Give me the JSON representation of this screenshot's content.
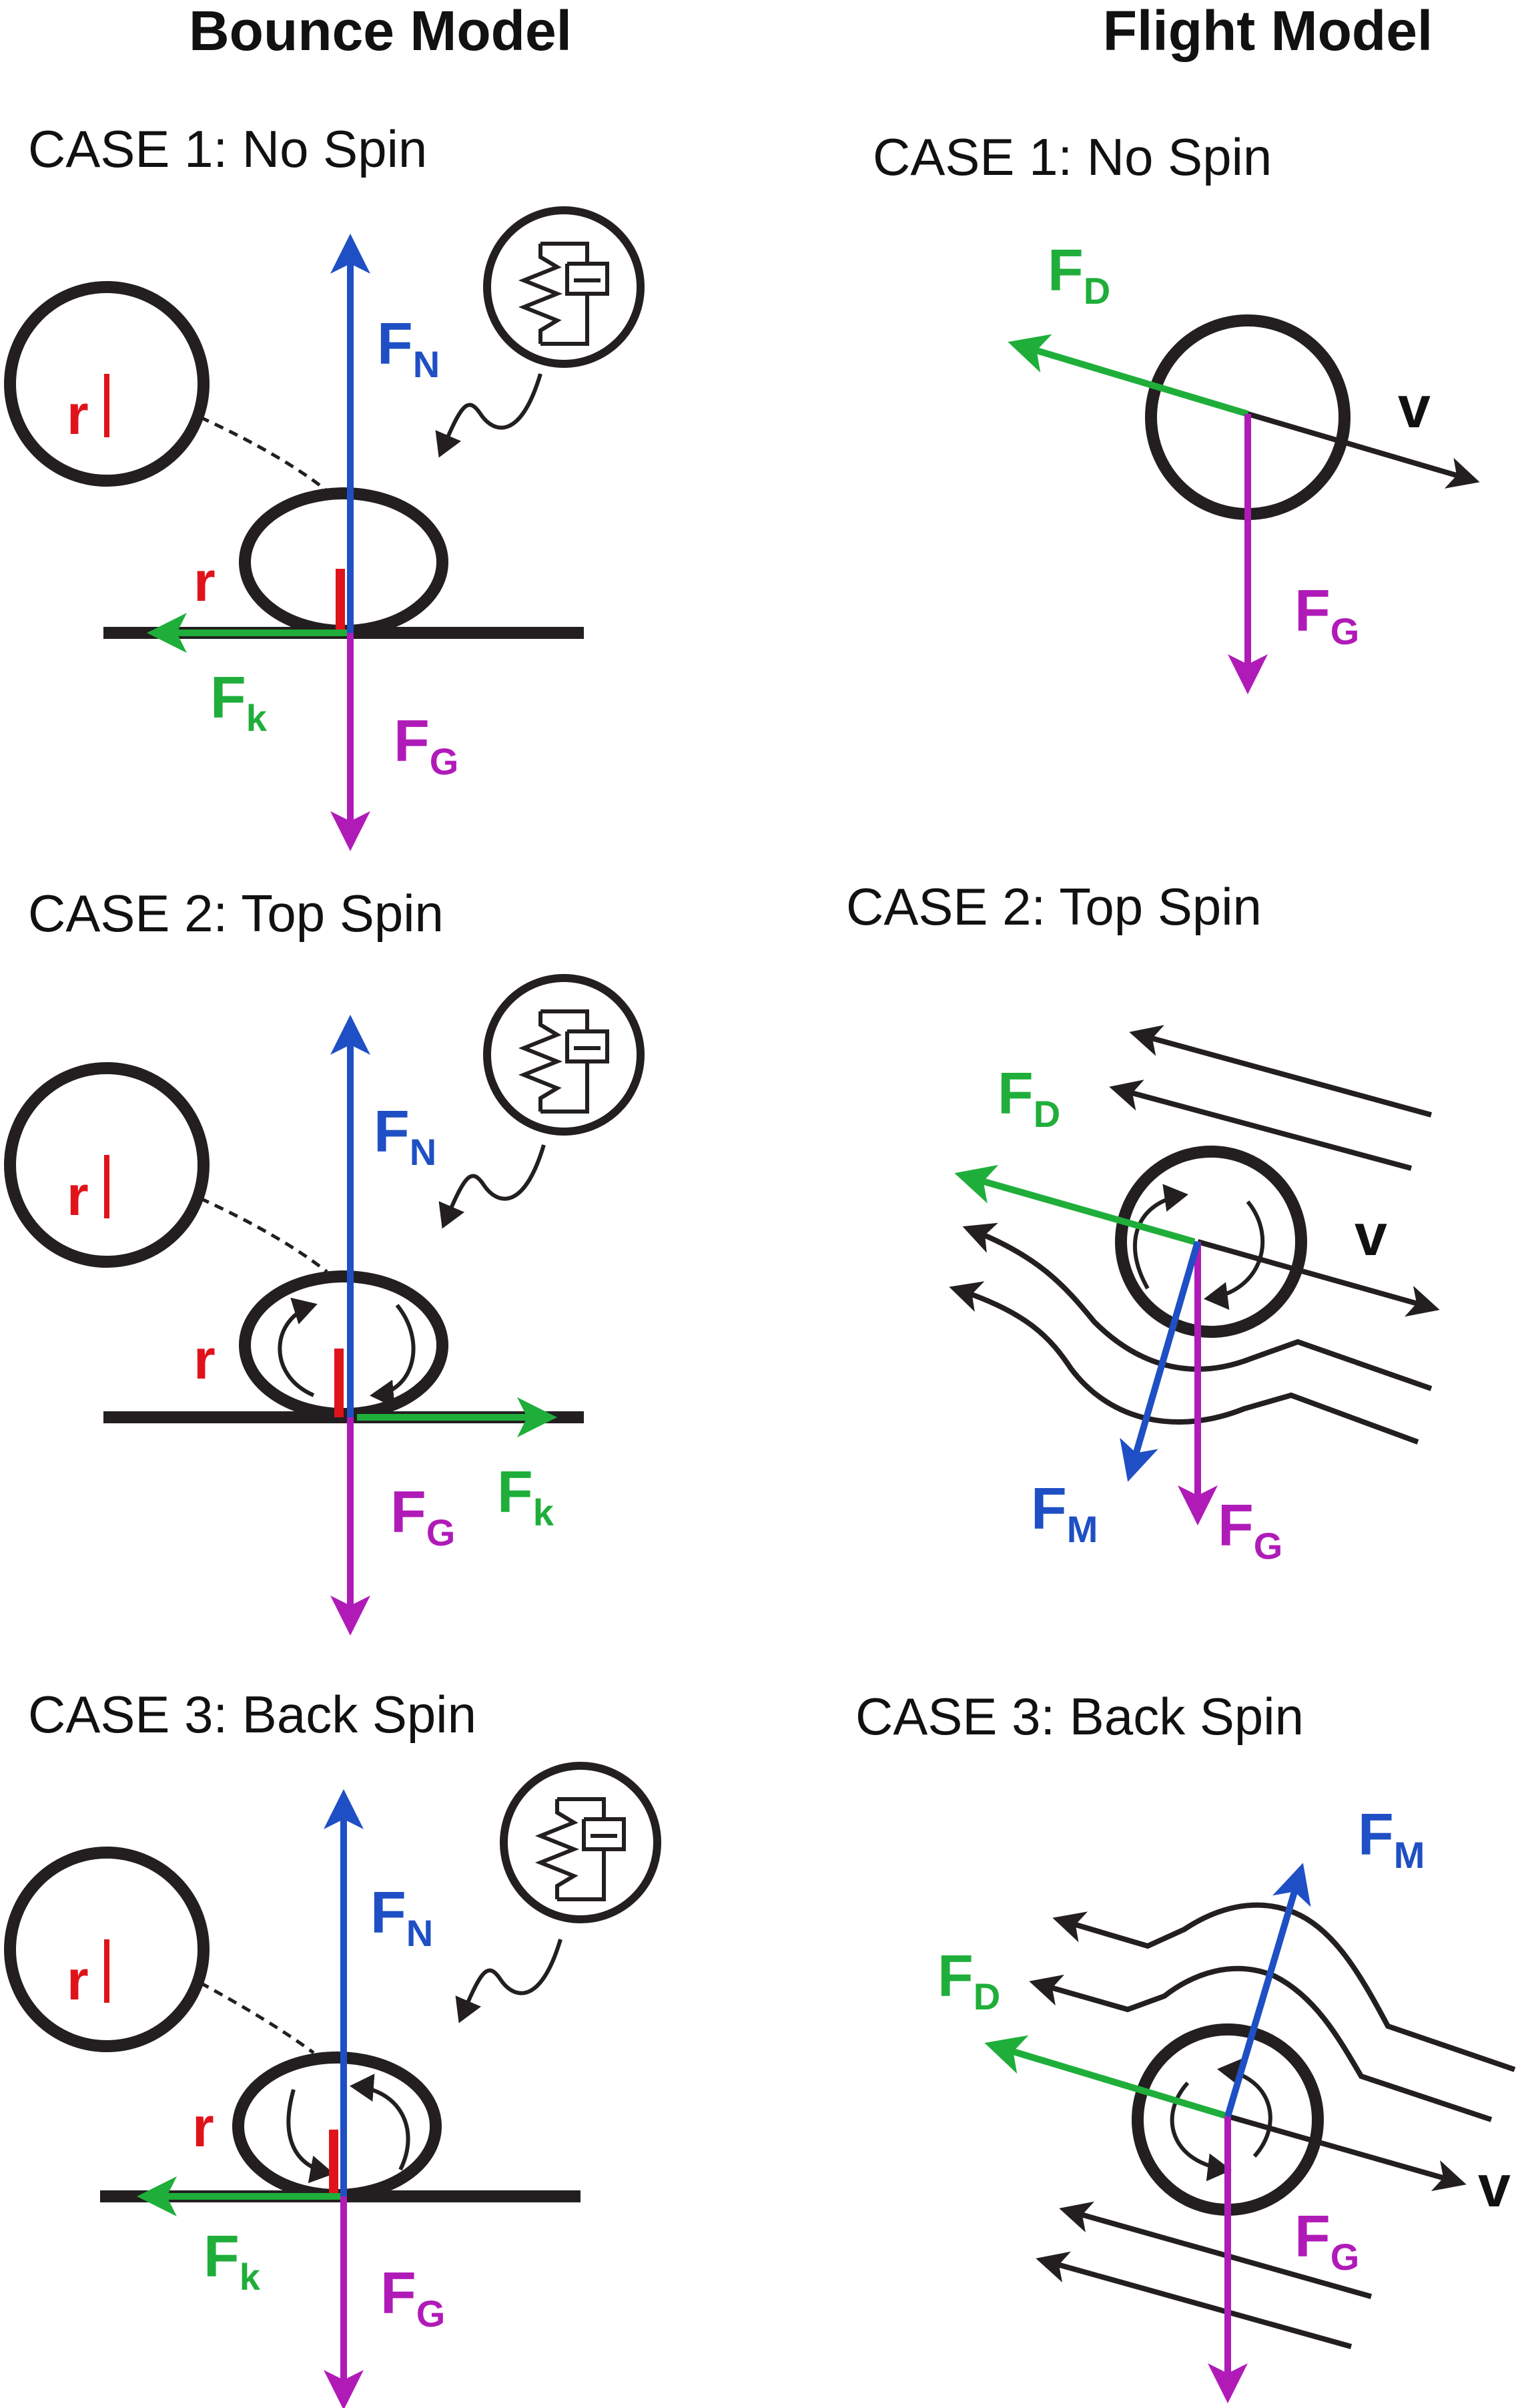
{
  "headers": {
    "bounce": "Bounce Model",
    "flight": "Flight Model"
  },
  "colors": {
    "normal": "#1f4fc4",
    "gravity": "#b01bb8",
    "friction": "#1fae3a",
    "radius": "#e0131b",
    "magnus": "#1f4fc4",
    "outline": "#231f20"
  },
  "bounce": {
    "case1": {
      "title": "CASE 1: No Spin",
      "normal": {
        "main": "F",
        "sub": "N"
      },
      "gravity": {
        "main": "F",
        "sub": "G"
      },
      "friction": {
        "main": "F",
        "sub": "k"
      },
      "radius": "r",
      "radius_zoom": "r"
    },
    "case2": {
      "title": "CASE 2: Top Spin",
      "normal": {
        "main": "F",
        "sub": "N"
      },
      "gravity": {
        "main": "F",
        "sub": "G"
      },
      "friction": {
        "main": "F",
        "sub": "k"
      },
      "radius": "r",
      "radius_zoom": "r"
    },
    "case3": {
      "title": "CASE 3: Back Spin",
      "normal": {
        "main": "F",
        "sub": "N"
      },
      "gravity": {
        "main": "F",
        "sub": "G"
      },
      "friction": {
        "main": "F",
        "sub": "k"
      },
      "radius": "r",
      "radius_zoom": "r"
    }
  },
  "flight": {
    "case1": {
      "title": "CASE 1: No Spin",
      "drag": {
        "main": "F",
        "sub": "D"
      },
      "gravity": {
        "main": "F",
        "sub": "G"
      },
      "velocity": "v"
    },
    "case2": {
      "title": "CASE 2: Top Spin",
      "drag": {
        "main": "F",
        "sub": "D"
      },
      "gravity": {
        "main": "F",
        "sub": "G"
      },
      "magnus": {
        "main": "F",
        "sub": "M"
      },
      "velocity": "v"
    },
    "case3": {
      "title": "CASE 3: Back Spin",
      "drag": {
        "main": "F",
        "sub": "D"
      },
      "gravity": {
        "main": "F",
        "sub": "G"
      },
      "magnus": {
        "main": "F",
        "sub": "M"
      },
      "velocity": "v"
    }
  }
}
